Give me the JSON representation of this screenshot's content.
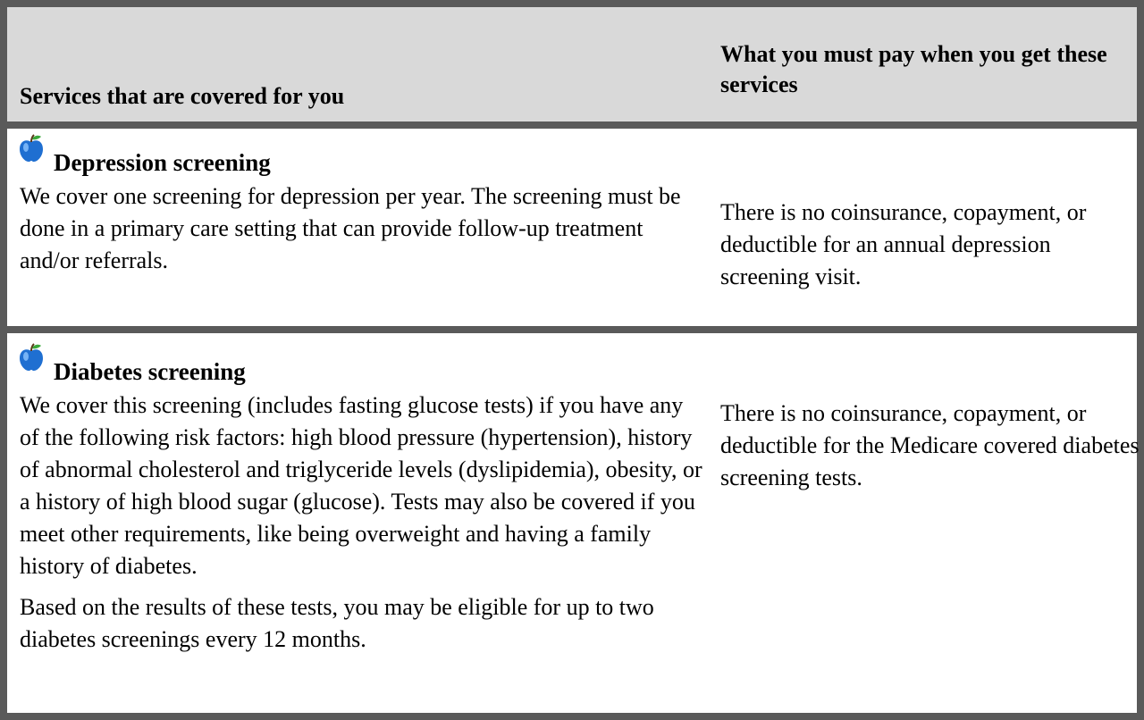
{
  "table": {
    "header": [
      "Services that are covered for you",
      "What you must pay when you get these services"
    ],
    "rows": [
      {
        "title": "Depression screening",
        "description": [
          "We cover one screening for depression per year. The screening must be done in a primary care setting that can provide follow-up treatment and/or referrals."
        ],
        "cost": "There is no coinsurance, copayment, or deductible for an annual depression screening visit."
      },
      {
        "title": "Diabetes screening",
        "description": [
          "We cover this screening (includes fasting glucose tests) if you have any of the following risk factors: high blood pressure (hypertension), history of abnormal cholesterol and triglyceride levels (dyslipidemia), obesity, or a history of high blood sugar (glucose). Tests may also be covered if you meet other requirements, like being overweight and having a family history of diabetes.",
          "Based on the results of these tests, you may be eligible for up to two diabetes screenings every 12 months."
        ],
        "cost": "There is no coinsurance, copayment, or deductible for the Medicare covered diabetes screening tests."
      }
    ]
  }
}
